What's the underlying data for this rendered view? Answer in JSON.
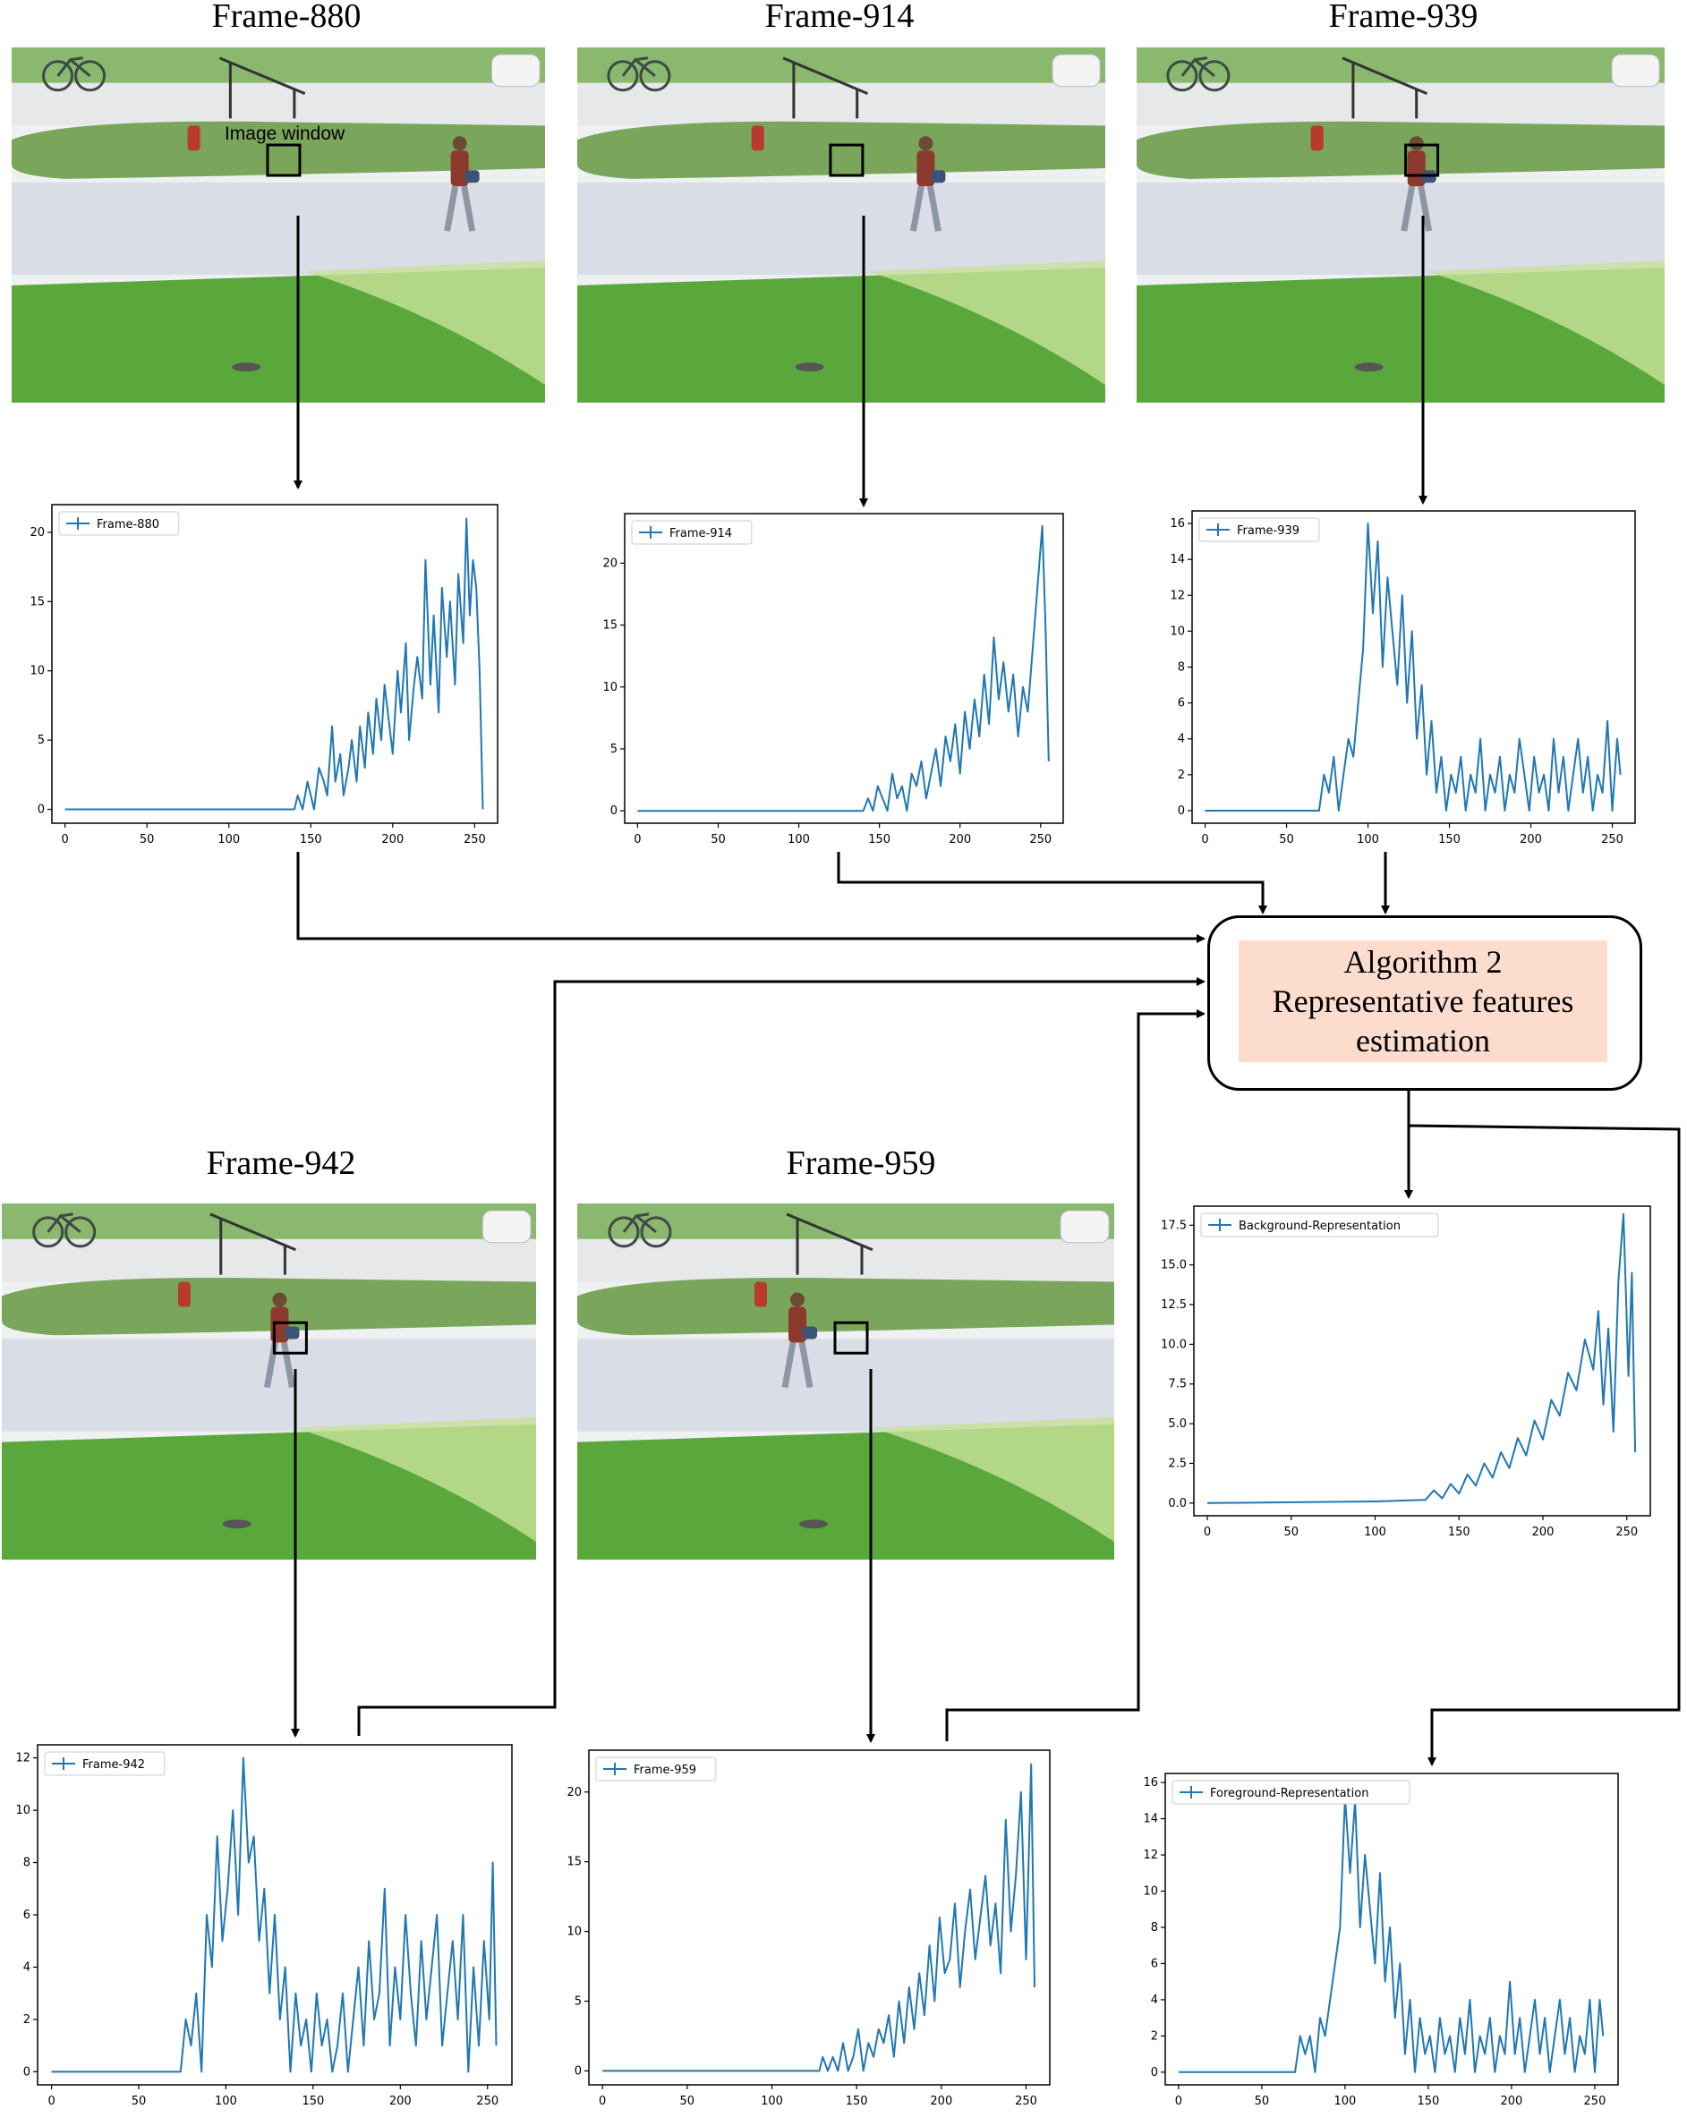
{
  "frames": [
    {
      "id": "880",
      "title": "Frame-880",
      "window_label": "Image window"
    },
    {
      "id": "914",
      "title": "Frame-914"
    },
    {
      "id": "939",
      "title": "Frame-939"
    },
    {
      "id": "942",
      "title": "Frame-942"
    },
    {
      "id": "959",
      "title": "Frame-959"
    }
  ],
  "algorithm": {
    "line1": "Algorithm 2",
    "line2": "Representative features",
    "line3": "estimation"
  },
  "colors": {
    "line": "#1f77b4",
    "algo_fill": "#fbdccd",
    "grass": "#5aa83c",
    "road": "#d9dde6"
  },
  "chart_data": [
    {
      "type": "line",
      "series_name": "Frame-880",
      "x_ticks": [
        0,
        50,
        100,
        150,
        200,
        250
      ],
      "y_ticks": [
        0,
        5,
        10,
        15,
        20
      ],
      "xlim": [
        -8,
        264
      ],
      "ylim": [
        -1,
        22
      ],
      "x": [
        0,
        140,
        142,
        145,
        148,
        150,
        152,
        155,
        158,
        160,
        163,
        165,
        168,
        170,
        173,
        175,
        178,
        180,
        183,
        185,
        188,
        190,
        193,
        195,
        198,
        200,
        203,
        205,
        208,
        210,
        213,
        215,
        218,
        220,
        223,
        225,
        228,
        230,
        233,
        235,
        238,
        240,
        243,
        245,
        247,
        249,
        251,
        253,
        255
      ],
      "y": [
        0,
        0,
        1,
        0,
        2,
        1,
        0,
        3,
        2,
        1,
        6,
        2,
        4,
        1,
        3,
        5,
        2,
        6,
        3,
        7,
        4,
        8,
        5,
        9,
        6,
        4,
        10,
        7,
        12,
        5,
        9,
        11,
        8,
        18,
        9,
        14,
        7,
        16,
        11,
        15,
        9,
        17,
        12,
        21,
        14,
        18,
        16,
        10,
        0
      ]
    },
    {
      "type": "line",
      "series_name": "Frame-914",
      "x_ticks": [
        0,
        50,
        100,
        150,
        200,
        250
      ],
      "y_ticks": [
        0,
        5,
        10,
        15,
        20
      ],
      "xlim": [
        -8,
        264
      ],
      "ylim": [
        -1,
        24
      ],
      "x": [
        0,
        140,
        143,
        146,
        149,
        152,
        155,
        158,
        161,
        164,
        167,
        170,
        173,
        176,
        179,
        182,
        185,
        188,
        191,
        194,
        197,
        200,
        203,
        206,
        209,
        212,
        215,
        218,
        221,
        224,
        227,
        230,
        233,
        236,
        239,
        242,
        245,
        248,
        251,
        253,
        255
      ],
      "y": [
        0,
        0,
        1,
        0,
        2,
        1,
        0,
        3,
        1,
        2,
        0,
        3,
        2,
        4,
        1,
        3,
        5,
        2,
        6,
        4,
        7,
        3,
        8,
        5,
        9,
        6,
        11,
        7,
        14,
        9,
        12,
        8,
        11,
        6,
        10,
        8,
        13,
        18,
        23,
        15,
        4
      ]
    },
    {
      "type": "line",
      "series_name": "Frame-939",
      "x_ticks": [
        0,
        50,
        100,
        150,
        200,
        250
      ],
      "y_ticks": [
        0,
        2,
        4,
        6,
        8,
        10,
        12,
        14,
        16
      ],
      "xlim": [
        -8,
        264
      ],
      "ylim": [
        -0.7,
        16.7
      ],
      "x": [
        0,
        70,
        73,
        76,
        79,
        82,
        85,
        88,
        91,
        94,
        97,
        100,
        103,
        106,
        109,
        112,
        115,
        118,
        121,
        124,
        127,
        130,
        133,
        136,
        139,
        142,
        145,
        148,
        151,
        154,
        157,
        160,
        163,
        166,
        169,
        172,
        175,
        178,
        181,
        184,
        187,
        190,
        193,
        196,
        199,
        202,
        205,
        208,
        211,
        214,
        217,
        220,
        223,
        226,
        229,
        232,
        235,
        238,
        241,
        244,
        247,
        250,
        253,
        255
      ],
      "y": [
        0,
        0,
        2,
        1,
        3,
        0,
        2,
        4,
        3,
        6,
        9,
        16,
        11,
        15,
        8,
        13,
        10,
        7,
        12,
        6,
        10,
        4,
        7,
        2,
        5,
        1,
        3,
        0,
        2,
        1,
        3,
        0,
        2,
        1,
        4,
        0,
        2,
        1,
        3,
        0,
        2,
        1,
        4,
        2,
        0,
        3,
        1,
        2,
        0,
        4,
        1,
        3,
        0,
        2,
        4,
        1,
        3,
        0,
        2,
        1,
        5,
        0,
        4,
        2
      ]
    },
    {
      "type": "line",
      "series_name": "Frame-942",
      "x_ticks": [
        0,
        50,
        100,
        150,
        200,
        250
      ],
      "y_ticks": [
        0,
        2,
        4,
        6,
        8,
        10,
        12
      ],
      "xlim": [
        -8,
        264
      ],
      "ylim": [
        -0.5,
        12.5
      ],
      "x": [
        0,
        74,
        77,
        80,
        83,
        86,
        89,
        92,
        95,
        98,
        101,
        104,
        107,
        110,
        113,
        116,
        119,
        122,
        125,
        128,
        131,
        134,
        137,
        140,
        143,
        146,
        149,
        152,
        155,
        158,
        161,
        164,
        167,
        170,
        173,
        176,
        179,
        182,
        185,
        188,
        191,
        194,
        197,
        200,
        203,
        206,
        209,
        212,
        215,
        218,
        221,
        224,
        227,
        230,
        233,
        236,
        239,
        242,
        245,
        248,
        251,
        253,
        255
      ],
      "y": [
        0,
        0,
        2,
        1,
        3,
        0,
        6,
        4,
        9,
        5,
        7,
        10,
        6,
        12,
        8,
        9,
        5,
        7,
        3,
        6,
        2,
        4,
        0,
        3,
        1,
        2,
        0,
        3,
        1,
        2,
        0,
        1,
        3,
        0,
        2,
        4,
        1,
        5,
        2,
        3,
        7,
        1,
        4,
        2,
        6,
        3,
        1,
        5,
        2,
        4,
        6,
        1,
        3,
        5,
        2,
        6,
        0,
        4,
        1,
        5,
        2,
        8,
        1
      ]
    },
    {
      "type": "line",
      "series_name": "Frame-959",
      "x_ticks": [
        0,
        50,
        100,
        150,
        200,
        250
      ],
      "y_ticks": [
        0,
        5,
        10,
        15,
        20
      ],
      "xlim": [
        -8,
        264
      ],
      "ylim": [
        -1,
        23
      ],
      "x": [
        0,
        128,
        130,
        133,
        136,
        139,
        142,
        145,
        148,
        151,
        154,
        157,
        160,
        163,
        166,
        169,
        172,
        175,
        178,
        181,
        184,
        187,
        190,
        193,
        196,
        199,
        202,
        205,
        208,
        211,
        214,
        217,
        220,
        223,
        226,
        229,
        232,
        235,
        238,
        241,
        244,
        247,
        250,
        253,
        255
      ],
      "y": [
        0,
        0,
        1,
        0,
        1,
        0,
        2,
        0,
        1,
        3,
        0,
        2,
        1,
        3,
        2,
        4,
        1,
        5,
        2,
        6,
        3,
        7,
        4,
        9,
        5,
        11,
        7,
        8,
        12,
        6,
        10,
        13,
        8,
        11,
        14,
        9,
        12,
        7,
        18,
        10,
        14,
        20,
        8,
        22,
        6
      ]
    },
    {
      "type": "line",
      "series_name": "Background-Representation",
      "x_ticks": [
        0,
        50,
        100,
        150,
        200,
        250
      ],
      "y_ticks": [
        0.0,
        2.5,
        5.0,
        7.5,
        10.0,
        12.5,
        15.0,
        17.5
      ],
      "xlim": [
        -8,
        264
      ],
      "ylim": [
        -0.8,
        18.7
      ],
      "x": [
        0,
        50,
        100,
        130,
        135,
        140,
        145,
        150,
        155,
        160,
        165,
        170,
        175,
        180,
        185,
        190,
        195,
        200,
        205,
        210,
        215,
        220,
        225,
        230,
        233,
        236,
        239,
        242,
        245,
        248,
        251,
        253,
        255
      ],
      "y": [
        0,
        0.05,
        0.1,
        0.2,
        0.8,
        0.3,
        1.2,
        0.6,
        1.8,
        1.1,
        2.5,
        1.6,
        3.2,
        2.2,
        4.1,
        3.0,
        5.2,
        4.0,
        6.5,
        5.5,
        8.2,
        7.1,
        10.3,
        8.4,
        12.1,
        6.2,
        11.0,
        4.5,
        14.0,
        18.2,
        8.0,
        14.5,
        3.2
      ]
    },
    {
      "type": "line",
      "series_name": "Foreground-Representation",
      "x_ticks": [
        0,
        50,
        100,
        150,
        200,
        250
      ],
      "y_ticks": [
        0,
        2,
        4,
        6,
        8,
        10,
        12,
        14,
        16
      ],
      "xlim": [
        -8,
        264
      ],
      "ylim": [
        -0.7,
        16.5
      ],
      "x": [
        0,
        70,
        73,
        76,
        79,
        82,
        85,
        88,
        91,
        94,
        97,
        100,
        103,
        106,
        109,
        112,
        115,
        118,
        121,
        124,
        127,
        130,
        133,
        136,
        139,
        142,
        145,
        148,
        151,
        154,
        157,
        160,
        163,
        166,
        169,
        172,
        175,
        178,
        181,
        184,
        187,
        190,
        193,
        196,
        199,
        202,
        205,
        208,
        211,
        214,
        217,
        220,
        223,
        226,
        229,
        232,
        235,
        238,
        241,
        244,
        247,
        250,
        253,
        255
      ],
      "y": [
        0,
        0,
        2,
        1,
        2,
        0,
        3,
        2,
        4,
        6,
        8,
        15.2,
        11,
        15,
        8,
        12,
        9,
        6,
        11,
        5,
        8,
        3,
        6,
        1,
        4,
        0,
        3,
        1,
        2,
        0,
        3,
        1,
        2,
        0,
        3,
        1,
        4,
        0,
        2,
        1,
        3,
        0,
        2,
        1,
        5,
        1,
        3,
        0,
        2,
        4,
        1,
        3,
        0,
        2,
        4,
        1,
        3,
        0,
        2,
        1,
        4,
        0,
        4,
        2
      ]
    }
  ]
}
